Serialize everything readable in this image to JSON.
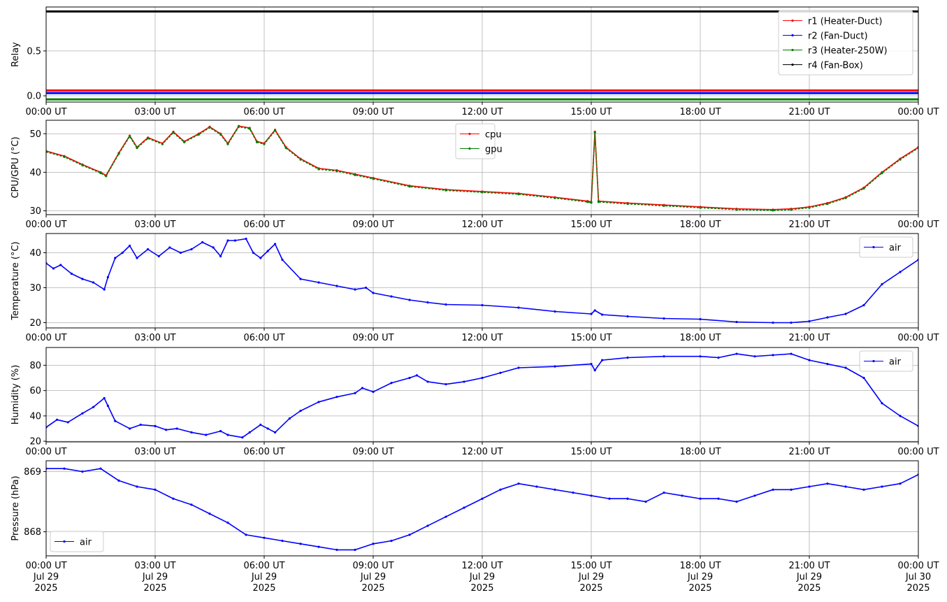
{
  "chart_data": [
    {
      "type": "line",
      "ylabel": "Relay",
      "ylim": [
        -0.07,
        0.99
      ],
      "yticks": [
        0.0,
        0.5
      ],
      "ytick_labels": [
        "0.0",
        "0.5"
      ],
      "xticks": [
        "00:00 UT",
        "03:00 UT",
        "06:00 UT",
        "09:00 UT",
        "12:00 UT",
        "15:00 UT",
        "18:00 UT",
        "21:00 UT",
        "00:00 UT"
      ],
      "grid": true,
      "legend": "top-right",
      "series": [
        {
          "name": "r1 (Heater-Duct)",
          "color": "#ff0000",
          "x": [
            0,
            24
          ],
          "y": [
            0.06,
            0.06
          ]
        },
        {
          "name": "r2 (Fan-Duct)",
          "color": "#0000ff",
          "x": [
            0,
            24
          ],
          "y": [
            0.03,
            0.03
          ]
        },
        {
          "name": "r3 (Heater-250W)",
          "color": "#008000",
          "x": [
            0,
            24
          ],
          "y": [
            -0.04,
            -0.04
          ]
        },
        {
          "name": "r4 (Fan-Box)",
          "color": "#000000",
          "x": [
            0,
            24
          ],
          "y": [
            0.94,
            0.94
          ]
        }
      ]
    },
    {
      "type": "line",
      "ylabel": "CPU/GPU (°C)",
      "ylim": [
        29,
        53.5
      ],
      "yticks": [
        30,
        40,
        50
      ],
      "ytick_labels": [
        "30",
        "40",
        "50"
      ],
      "xticks": [
        "00:00 UT",
        "03:00 UT",
        "06:00 UT",
        "09:00 UT",
        "12:00 UT",
        "15:00 UT",
        "18:00 UT",
        "21:00 UT",
        "00:00 UT"
      ],
      "grid": true,
      "legend": "top-center",
      "series": [
        {
          "name": "cpu",
          "color": "#ff0000",
          "x": [
            0,
            0.5,
            1.0,
            1.5,
            1.65,
            2.0,
            2.3,
            2.5,
            2.8,
            3.2,
            3.5,
            3.8,
            4.2,
            4.5,
            4.8,
            5.0,
            5.3,
            5.6,
            5.8,
            6.0,
            6.3,
            6.6,
            7.0,
            7.5,
            8.0,
            8.5,
            9.0,
            10.0,
            11.0,
            12.0,
            13.0,
            14.0,
            14.9,
            15.0,
            15.1,
            15.2,
            16.0,
            17.0,
            18.0,
            19.0,
            20.0,
            20.5,
            21.0,
            21.5,
            22.0,
            22.5,
            23.0,
            23.5,
            24.0
          ],
          "y": [
            45.5,
            44.2,
            42.0,
            40.0,
            39.2,
            45.0,
            49.5,
            46.5,
            49.0,
            47.5,
            50.5,
            48.0,
            50.0,
            51.8,
            50.0,
            47.5,
            52.0,
            51.5,
            48.0,
            47.5,
            51.0,
            46.5,
            43.5,
            41.0,
            40.5,
            39.5,
            38.5,
            36.5,
            35.5,
            35.0,
            34.5,
            33.5,
            32.5,
            32.3,
            50.5,
            32.5,
            32.0,
            31.5,
            31.0,
            30.5,
            30.3,
            30.5,
            31.0,
            32.0,
            33.5,
            36.0,
            40.0,
            43.5,
            46.5
          ]
        },
        {
          "name": "gpu",
          "color": "#008000",
          "x": [
            0,
            0.5,
            1.0,
            1.5,
            1.65,
            2.0,
            2.3,
            2.5,
            2.8,
            3.2,
            3.5,
            3.8,
            4.2,
            4.5,
            4.8,
            5.0,
            5.3,
            5.6,
            5.8,
            6.0,
            6.3,
            6.6,
            7.0,
            7.5,
            8.0,
            8.5,
            9.0,
            10.0,
            11.0,
            12.0,
            13.0,
            14.0,
            14.9,
            15.0,
            15.1,
            15.2,
            16.0,
            17.0,
            18.0,
            19.0,
            20.0,
            20.5,
            21.0,
            21.5,
            22.0,
            22.5,
            23.0,
            23.5,
            24.0
          ],
          "y": [
            45.3,
            44.0,
            41.8,
            39.8,
            39.0,
            44.8,
            49.3,
            46.3,
            48.8,
            47.3,
            50.3,
            47.8,
            49.8,
            51.6,
            49.8,
            47.3,
            51.8,
            51.3,
            47.8,
            47.3,
            50.8,
            46.3,
            43.3,
            40.8,
            40.3,
            39.3,
            38.3,
            36.3,
            35.3,
            34.8,
            34.3,
            33.3,
            32.3,
            32.1,
            50.3,
            32.3,
            31.8,
            31.3,
            30.8,
            30.3,
            30.1,
            30.3,
            30.8,
            31.8,
            33.3,
            35.8,
            39.8,
            43.3,
            46.3
          ]
        }
      ]
    },
    {
      "type": "line",
      "ylabel": "Temperature (°C)",
      "ylim": [
        18.5,
        45.5
      ],
      "yticks": [
        20,
        30,
        40
      ],
      "ytick_labels": [
        "20",
        "30",
        "40"
      ],
      "xticks": [
        "00:00 UT",
        "03:00 UT",
        "06:00 UT",
        "09:00 UT",
        "12:00 UT",
        "15:00 UT",
        "18:00 UT",
        "21:00 UT",
        "00:00 UT"
      ],
      "grid": true,
      "legend": "top-right",
      "series": [
        {
          "name": "air",
          "color": "#0000ff",
          "x": [
            0,
            0.2,
            0.4,
            0.7,
            1.0,
            1.3,
            1.6,
            1.7,
            1.9,
            2.1,
            2.3,
            2.5,
            2.8,
            3.1,
            3.4,
            3.7,
            4.0,
            4.3,
            4.6,
            4.8,
            5.0,
            5.2,
            5.5,
            5.7,
            5.9,
            6.1,
            6.3,
            6.5,
            7.0,
            7.5,
            8.0,
            8.5,
            8.8,
            9.0,
            9.5,
            10.0,
            10.5,
            11.0,
            12.0,
            13.0,
            14.0,
            15.0,
            15.1,
            15.3,
            16.0,
            17.0,
            18.0,
            19.0,
            20.0,
            20.5,
            21.0,
            21.5,
            22.0,
            22.5,
            23.0,
            23.5,
            24.0
          ],
          "y": [
            37.0,
            35.5,
            36.5,
            34.0,
            32.5,
            31.5,
            29.5,
            33.0,
            38.5,
            40.0,
            42.0,
            38.5,
            41.0,
            39.0,
            41.5,
            40.0,
            41.0,
            43.0,
            41.5,
            39.0,
            43.5,
            43.5,
            44.0,
            40.0,
            38.5,
            40.5,
            42.5,
            38.0,
            32.5,
            31.5,
            30.5,
            29.5,
            30.0,
            28.5,
            27.5,
            26.5,
            25.8,
            25.2,
            25.0,
            24.3,
            23.2,
            22.5,
            23.5,
            22.3,
            21.8,
            21.2,
            21.0,
            20.2,
            20.0,
            20.0,
            20.4,
            21.5,
            22.5,
            25.0,
            31.0,
            34.5,
            38.0
          ]
        }
      ]
    },
    {
      "type": "line",
      "ylabel": "Humidity (%)",
      "ylim": [
        19.5,
        94
      ],
      "yticks": [
        20,
        40,
        60,
        80
      ],
      "ytick_labels": [
        "20",
        "40",
        "60",
        "80"
      ],
      "xticks": [
        "00:00 UT",
        "03:00 UT",
        "06:00 UT",
        "09:00 UT",
        "12:00 UT",
        "15:00 UT",
        "18:00 UT",
        "21:00 UT",
        "00:00 UT"
      ],
      "grid": true,
      "legend": "top-right",
      "series": [
        {
          "name": "air",
          "color": "#0000ff",
          "x": [
            0,
            0.3,
            0.6,
            1.0,
            1.3,
            1.6,
            1.7,
            1.9,
            2.3,
            2.6,
            3.0,
            3.3,
            3.6,
            4.0,
            4.4,
            4.8,
            5.0,
            5.4,
            5.6,
            5.9,
            6.1,
            6.3,
            6.7,
            7.0,
            7.5,
            8.0,
            8.5,
            8.7,
            9.0,
            9.5,
            10.0,
            10.2,
            10.5,
            11.0,
            11.5,
            12.0,
            12.5,
            13.0,
            14.0,
            15.0,
            15.1,
            15.3,
            16.0,
            17.0,
            18.0,
            18.5,
            19.0,
            19.5,
            20.0,
            20.5,
            21.0,
            21.5,
            22.0,
            22.5,
            23.0,
            23.5,
            24.0
          ],
          "y": [
            31,
            37,
            35,
            42,
            47,
            54,
            48,
            36,
            30,
            33,
            32,
            29,
            30,
            27,
            25,
            28,
            25,
            23,
            27,
            33,
            30,
            27,
            38,
            44,
            51,
            55,
            58,
            62,
            59,
            66,
            70,
            72,
            67,
            65,
            67,
            70,
            74,
            78,
            79,
            81,
            76,
            84,
            86,
            87,
            87,
            86,
            89,
            87,
            88,
            89,
            84,
            81,
            78,
            70,
            50,
            40,
            32
          ]
        }
      ]
    },
    {
      "type": "line",
      "ylabel": "Pressure (hPa)",
      "ylim": [
        867.6,
        869.18
      ],
      "yticks": [
        868,
        869
      ],
      "ytick_labels": [
        "868",
        "869"
      ],
      "xticks": [
        "00:00 UT",
        "03:00 UT",
        "06:00 UT",
        "09:00 UT",
        "12:00 UT",
        "15:00 UT",
        "18:00 UT",
        "21:00 UT",
        "00:00 UT"
      ],
      "date_labels": [
        "Jul 29\n2025",
        "Jul 29\n2025",
        "Jul 29\n2025",
        "Jul 29\n2025",
        "Jul 29\n2025",
        "Jul 29\n2025",
        "Jul 29\n2025",
        "Jul 29\n2025",
        "Jul 30\n2025"
      ],
      "grid": true,
      "legend": "bottom-left",
      "series": [
        {
          "name": "air",
          "color": "#0000ff",
          "x": [
            0,
            0.5,
            1.0,
            1.5,
            2.0,
            2.5,
            3.0,
            3.5,
            4.0,
            4.5,
            5.0,
            5.5,
            6.0,
            6.5,
            7.0,
            7.5,
            8.0,
            8.5,
            9.0,
            9.5,
            10.0,
            10.5,
            11.0,
            11.5,
            12.0,
            12.5,
            13.0,
            13.5,
            14.0,
            14.5,
            15.0,
            15.5,
            16.0,
            16.5,
            17.0,
            17.5,
            18.0,
            18.5,
            19.0,
            19.5,
            20.0,
            20.5,
            21.0,
            21.5,
            22.0,
            22.5,
            23.0,
            23.5,
            24.0
          ],
          "y": [
            869.05,
            869.05,
            869.0,
            869.05,
            868.85,
            868.75,
            868.7,
            868.55,
            868.45,
            868.3,
            868.15,
            867.95,
            867.9,
            867.85,
            867.8,
            867.75,
            867.7,
            867.7,
            867.8,
            867.85,
            867.95,
            868.1,
            868.25,
            868.4,
            868.55,
            868.7,
            868.8,
            868.75,
            868.7,
            868.65,
            868.6,
            868.55,
            868.55,
            868.5,
            868.65,
            868.6,
            868.55,
            868.55,
            868.5,
            868.6,
            868.7,
            868.7,
            868.75,
            868.8,
            868.75,
            868.7,
            868.75,
            868.8,
            868.95
          ]
        }
      ]
    }
  ]
}
